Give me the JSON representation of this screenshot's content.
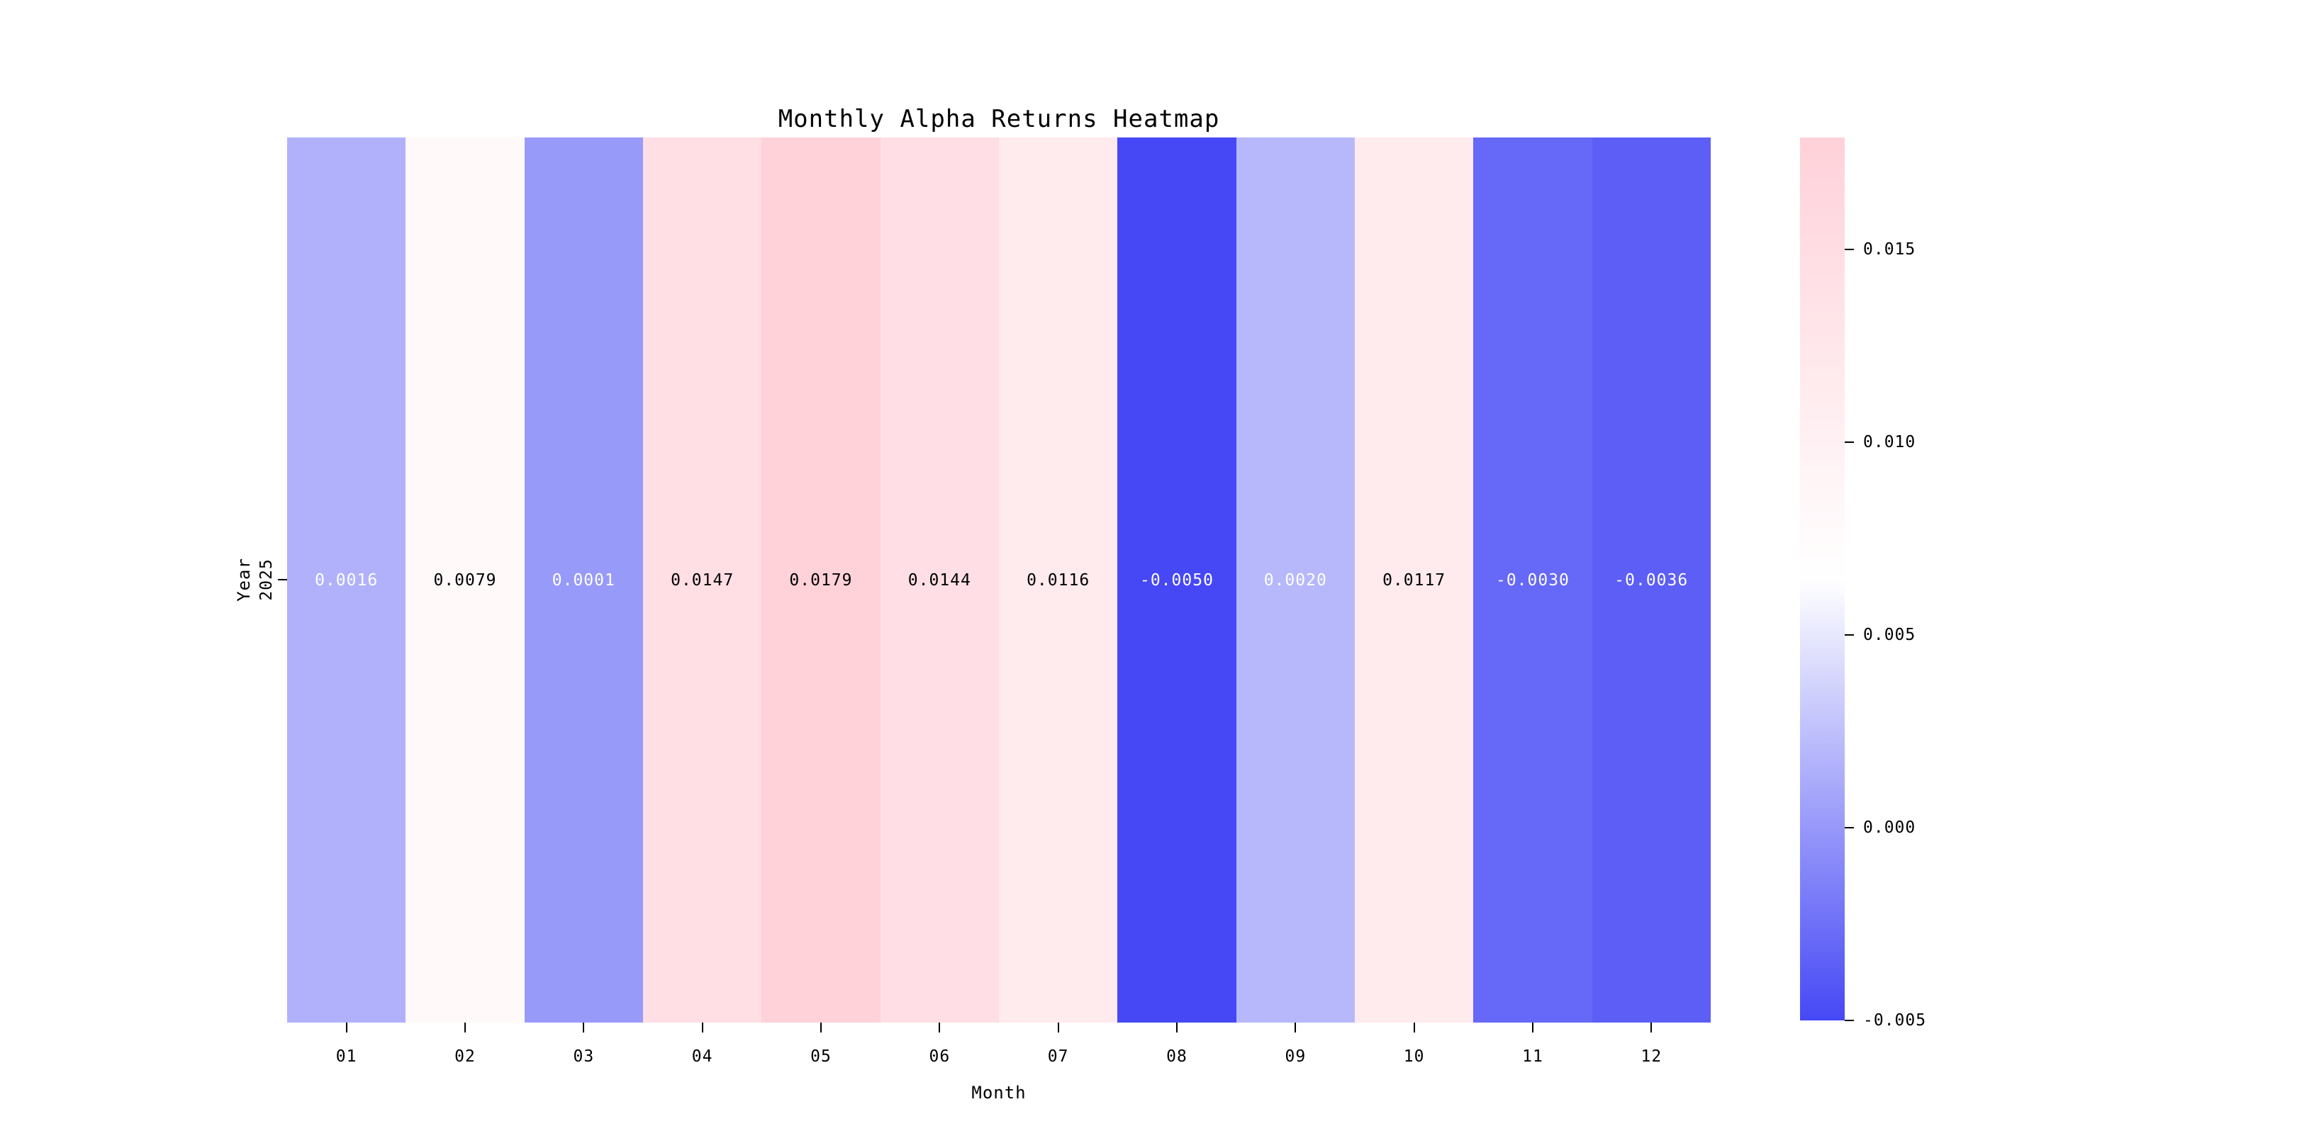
{
  "chart_data": {
    "type": "heatmap",
    "title": "Monthly Alpha Returns Heatmap",
    "xlabel": "Month",
    "ylabel": "Year",
    "x_categories": [
      "01",
      "02",
      "03",
      "04",
      "05",
      "06",
      "07",
      "08",
      "09",
      "10",
      "11",
      "12"
    ],
    "y_categories": [
      "2025"
    ],
    "values": [
      [
        0.0016,
        0.0079,
        0.0001,
        0.0147,
        0.0179,
        0.0144,
        0.0116,
        -0.005,
        0.002,
        0.0117,
        -0.003,
        -0.0036
      ]
    ],
    "annotations": [
      [
        "0.0016",
        "0.0079",
        "0.0001",
        "0.0147",
        "0.0179",
        "0.0144",
        "0.0116",
        "-0.0050",
        "0.0020",
        "0.0117",
        "-0.0030",
        "-0.0036"
      ]
    ],
    "annotation_text_colors": [
      [
        "#ffffff",
        "#000000",
        "#ffffff",
        "#000000",
        "#000000",
        "#000000",
        "#000000",
        "#ffffff",
        "#ffffff",
        "#000000",
        "#ffffff",
        "#ffffff"
      ]
    ],
    "vmin": -0.005,
    "vmax": 0.0179,
    "colormap": {
      "low": "#4648f5",
      "mid": "#ffffff",
      "high": "#ffd1d9"
    },
    "colorbar": {
      "ticks": [
        0.015,
        0.01,
        0.005,
        0.0,
        -0.005
      ],
      "tick_labels": [
        "0.015",
        "0.010",
        "0.005",
        "0.000",
        "-0.005"
      ]
    },
    "grid": false,
    "legend": "colorbar-right"
  }
}
